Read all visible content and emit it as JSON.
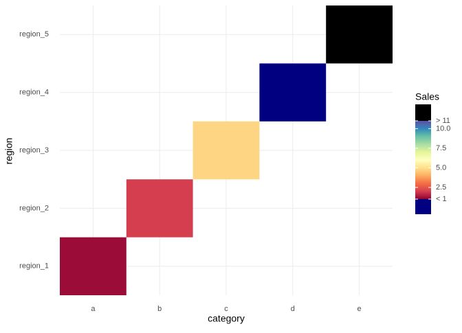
{
  "chart_data": {
    "type": "heatmap",
    "x_label": "category",
    "y_label": "region",
    "categories": [
      "a",
      "b",
      "c",
      "d",
      "e"
    ],
    "rows": [
      "region_1",
      "region_2",
      "region_3",
      "region_4",
      "region_5"
    ],
    "cells": [
      {
        "x": "a",
        "y": "region_1",
        "value": 1.2
      },
      {
        "x": "b",
        "y": "region_2",
        "value": 2
      },
      {
        "x": "c",
        "y": "region_3",
        "value": 4.8
      },
      {
        "x": "d",
        "y": "region_4",
        "value": 0.5
      },
      {
        "x": "e",
        "y": "region_5",
        "value": 12
      }
    ],
    "legend": {
      "title": "Sales",
      "lim": [
        1,
        11
      ],
      "ticks": [
        {
          "value": 1,
          "label": "< 1"
        },
        2.5,
        {
          "value": 5,
          "label": "5.0"
        },
        7.5,
        {
          "value": 10,
          "label": "10.0"
        },
        {
          "value": 11,
          "label": "> 11"
        }
      ],
      "colors": [
        "#8e0033",
        "#d53e4f",
        "#f46d43",
        "#fdae61",
        "#fee08b",
        "#ffffbf",
        "#e6f598",
        "#abdda4",
        "#66c2a5",
        "#3288bd",
        "#5e4fa2"
      ],
      "below_color": "#000080",
      "above_color": "#000000"
    },
    "grid": true
  }
}
